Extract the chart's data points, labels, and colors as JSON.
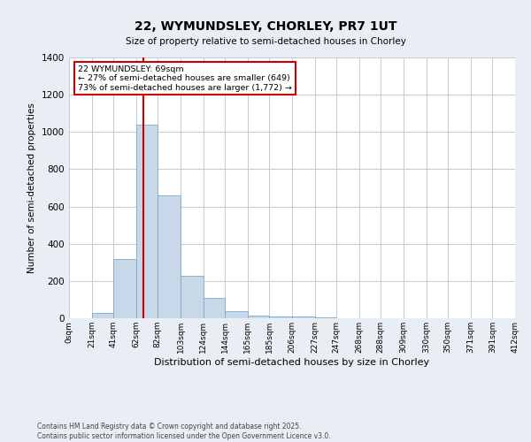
{
  "title": "22, WYMUNDSLEY, CHORLEY, PR7 1UT",
  "subtitle": "Size of property relative to semi-detached houses in Chorley",
  "xlabel": "Distribution of semi-detached houses by size in Chorley",
  "ylabel": "Number of semi-detached properties",
  "bin_edges": [
    0,
    21,
    41,
    62,
    82,
    103,
    124,
    144,
    165,
    185,
    206,
    227,
    247,
    268,
    288,
    309,
    330,
    350,
    371,
    391,
    412
  ],
  "bar_heights": [
    0,
    30,
    320,
    1040,
    660,
    230,
    110,
    40,
    15,
    10,
    10,
    5,
    0,
    0,
    0,
    0,
    0,
    0,
    0,
    0
  ],
  "bar_color": "#c8d8e8",
  "bar_edgecolor": "#7aaac8",
  "property_size": 69,
  "annotation_title": "22 WYMUNDSLEY: 69sqm",
  "annotation_line1": "← 27% of semi-detached houses are smaller (649)",
  "annotation_line2": "73% of semi-detached houses are larger (1,772) →",
  "annotation_box_color": "#ffffff",
  "annotation_box_edgecolor": "#cc0000",
  "vline_color": "#cc0000",
  "ylim": [
    0,
    1400
  ],
  "yticks": [
    0,
    200,
    400,
    600,
    800,
    1000,
    1200,
    1400
  ],
  "tick_labels": [
    "0sqm",
    "21sqm",
    "41sqm",
    "62sqm",
    "82sqm",
    "103sqm",
    "124sqm",
    "144sqm",
    "165sqm",
    "185sqm",
    "206sqm",
    "227sqm",
    "247sqm",
    "268sqm",
    "288sqm",
    "309sqm",
    "330sqm",
    "350sqm",
    "371sqm",
    "391sqm",
    "412sqm"
  ],
  "footer_line1": "Contains HM Land Registry data © Crown copyright and database right 2025.",
  "footer_line2": "Contains public sector information licensed under the Open Government Licence v3.0.",
  "bg_color": "#e8eef4",
  "plot_bg_color": "#ffffff",
  "grid_color": "#c0ccd8",
  "fig_width": 6.0,
  "fig_height": 5.0,
  "dpi": 100
}
